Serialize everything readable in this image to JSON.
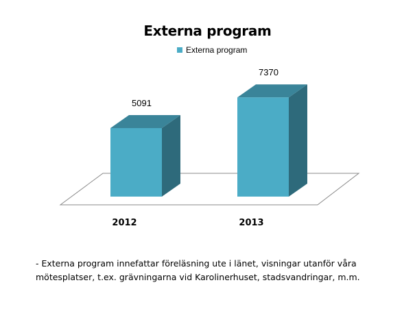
{
  "chart_data": {
    "type": "bar",
    "title": "Externa program",
    "categories": [
      "2012",
      "2013"
    ],
    "series": [
      {
        "name": "Externa program",
        "values": [
          5091,
          7370
        ]
      }
    ],
    "data_labels": [
      "5091",
      "7370"
    ],
    "legend_position": "top",
    "grid": false,
    "style": "3d-column",
    "colors": {
      "front": "#4bacc6",
      "top": "#3a8499",
      "side": "#2e6a7b",
      "floor_stroke": "#888888"
    }
  },
  "footnote": "- Externa program innefattar föreläsning ute i länet, visningar utanför våra mötesplatser, t.ex. grävningarna vid Karolinerhuset, stadsvandringar, m.m."
}
